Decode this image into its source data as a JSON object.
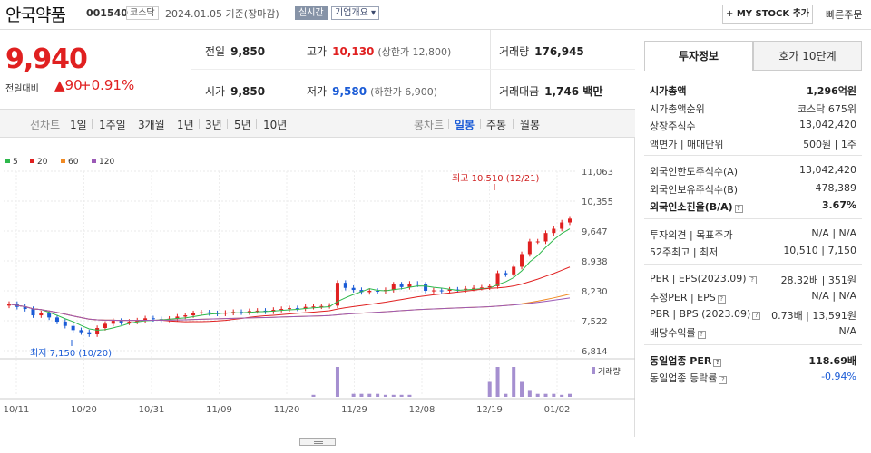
{
  "header": {
    "name": "안국약품",
    "code": "001540",
    "market": "코스닥",
    "date": "2024.01.05  기준(장마감)",
    "live_label": "실시간",
    "overview_label": "기업개요 ▾",
    "mystock_label": "+ MY STOCK 추가",
    "quick_order": "빠른주문"
  },
  "summary": {
    "price": "9,940",
    "change_label": "전일대비",
    "change": "▲90",
    "change_pct": "+0.91%",
    "prev_label": "전일",
    "prev": "9,850",
    "high_label": "고가",
    "high": "10,130",
    "upper_limit": "(상한가 12,800)",
    "volume_label": "거래량",
    "volume": "176,945",
    "open_label": "시가",
    "open": "9,850",
    "low_label": "저가",
    "low": "9,580",
    "lower_limit": "(하한가 6,900)",
    "amount_label": "거래대금",
    "amount": "1,746 백만"
  },
  "periods": {
    "line_label": "선차트",
    "line": [
      "1일",
      "1주일",
      "3개월",
      "1년",
      "3년",
      "5년",
      "10년"
    ],
    "candle_label": "봉차트",
    "candle": [
      "일봉",
      "주봉",
      "월봉"
    ],
    "candle_selected": "일봉"
  },
  "chart_data": {
    "type": "candlestick",
    "legend": [
      {
        "name": "5",
        "color": "#2db84b"
      },
      {
        "name": "20",
        "color": "#e02020"
      },
      {
        "name": "60",
        "color": "#f08a24"
      },
      {
        "name": "120",
        "color": "#9b59b6"
      }
    ],
    "y_ticks": [
      "11,063",
      "10,355",
      "9,647",
      "8,938",
      "8,230",
      "7,522",
      "6,814"
    ],
    "ylim": [
      6814,
      11063
    ],
    "x_ticks": [
      "10/11",
      "10/20",
      "10/31",
      "11/09",
      "11/20",
      "11/29",
      "12/08",
      "12/19",
      "01/02"
    ],
    "high_annotation": "최고 10,510 (12/21)",
    "low_annotation": "최저 7,150 (10/20)",
    "volume_label": "거래량",
    "closes": [
      7920,
      7850,
      7800,
      7650,
      7700,
      7600,
      7500,
      7400,
      7300,
      7250,
      7200,
      7350,
      7450,
      7520,
      7480,
      7500,
      7530,
      7580,
      7560,
      7550,
      7570,
      7620,
      7650,
      7700,
      7720,
      7700,
      7690,
      7710,
      7730,
      7720,
      7750,
      7760,
      7740,
      7780,
      7800,
      7820,
      7810,
      7850,
      7860,
      7870,
      7880,
      8420,
      8300,
      8250,
      8200,
      8230,
      8220,
      8250,
      8380,
      8320,
      8400,
      8380,
      8230,
      8240,
      8230,
      8260,
      8250,
      8280,
      8300,
      8310,
      8340,
      8650,
      8620,
      8800,
      9100,
      9400,
      9400,
      9600,
      9700,
      9850,
      9940
    ],
    "volume": [
      0,
      0,
      0,
      0,
      0,
      0,
      0,
      0,
      0,
      0,
      0,
      0,
      0,
      0,
      0,
      0,
      0,
      0,
      0,
      0,
      0,
      0,
      0,
      0,
      0,
      0,
      0,
      0,
      0,
      0,
      0,
      0,
      0,
      0,
      0,
      0,
      0,
      0,
      2,
      0,
      0,
      30,
      0,
      3,
      3,
      3,
      3,
      2,
      2,
      2,
      2,
      0,
      0,
      0,
      0,
      0,
      0,
      0,
      0,
      0,
      15,
      30,
      3,
      30,
      15,
      6,
      3,
      3,
      3,
      2,
      3
    ]
  },
  "panel": {
    "tab_active": "투자정보",
    "tab_other": "호가 10단계",
    "rows": [
      {
        "l": "시가총액",
        "r": "1,296억원",
        "b": true
      },
      {
        "l": "시가총액순위",
        "r": "코스닥 675위"
      },
      {
        "l": "상장주식수",
        "r": "13,042,420"
      },
      {
        "l": "액면가 | 매매단위",
        "r": "500원 | 1주"
      },
      {
        "sep": true
      },
      {
        "l": "외국인한도주식수(A)",
        "r": "13,042,420"
      },
      {
        "l": "외국인보유주식수(B)",
        "r": "478,389"
      },
      {
        "l": "외국인소진율(B/A)",
        "r": "3.67%",
        "b": true,
        "q": true
      },
      {
        "sep": true
      },
      {
        "l": "투자의견 | 목표주가",
        "r": "N/A | N/A"
      },
      {
        "l": "52주최고 | 최저",
        "r": "10,510 | 7,150"
      },
      {
        "sep": true
      },
      {
        "l": "PER | EPS(2023.09)",
        "r": "28.32배 | 351원",
        "q": true
      },
      {
        "l": "추정PER | EPS",
        "r": "N/A | N/A",
        "q": true
      },
      {
        "l": "PBR | BPS (2023.09)",
        "r": "0.73배 | 13,591원",
        "q": true
      },
      {
        "l": "배당수익률",
        "r": "N/A",
        "q": true
      },
      {
        "sep": true
      },
      {
        "l": "동일업종 PER",
        "r": "118.69배",
        "b": true,
        "q": true
      },
      {
        "l": "동일업종 등락률",
        "r": "-0.94%",
        "q": true,
        "blue": true
      }
    ]
  }
}
